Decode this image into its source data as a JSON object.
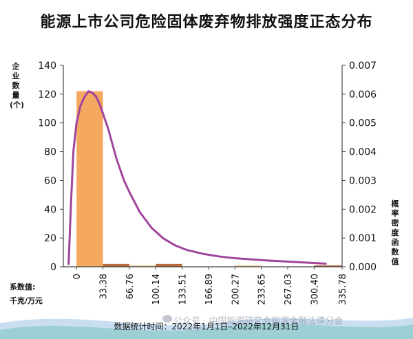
{
  "chart_data": {
    "type": "bar",
    "title": "能源上市公司危险固体废弃物排放强度正态分布",
    "y_left_label": "企业数量(个)",
    "y_right_label": "概率密度函数值",
    "x_label_line1": "系数值:",
    "x_label_line2": "千克/万元",
    "x_ticks": [
      "0",
      "33.38",
      "66.76",
      "100.14",
      "133.51",
      "166.89",
      "200.27",
      "233.65",
      "267.03",
      "300.40",
      "335.78"
    ],
    "y_left_ticks": [
      "0",
      "20",
      "40",
      "60",
      "80",
      "100",
      "120",
      "140"
    ],
    "y_right_ticks": [
      "0.000",
      "0.001",
      "0.002",
      "0.003",
      "0.004",
      "0.005",
      "0.006",
      "0.007"
    ],
    "ylim_left": [
      0,
      140
    ],
    "ylim_right": [
      0,
      0.007
    ],
    "xlim": [
      -16.69,
      335.78
    ],
    "bars": [
      {
        "x0": 0,
        "x1": 33.38,
        "value": 122,
        "color": "#F5A860"
      },
      {
        "x0": 33.38,
        "x1": 66.76,
        "value": 2,
        "color": "#B86A3A"
      },
      {
        "x0": 66.76,
        "x1": 100.14,
        "value": 1,
        "color": "#F2C49A"
      },
      {
        "x0": 100.14,
        "x1": 133.51,
        "value": 2,
        "color": "#B86A3A"
      },
      {
        "x0": 200.27,
        "x1": 233.65,
        "value": 1,
        "color": "#F2C49A"
      },
      {
        "x0": 300.4,
        "x1": 335.78,
        "value": 1,
        "color": "#B86A3A"
      }
    ],
    "curve": {
      "color": "#A0449C",
      "points": [
        [
          -10,
          0.0001
        ],
        [
          -7,
          0.0022
        ],
        [
          -4,
          0.004
        ],
        [
          0,
          0.005
        ],
        [
          5,
          0.0056
        ],
        [
          10,
          0.0059
        ],
        [
          15,
          0.0061
        ],
        [
          20,
          0.00605
        ],
        [
          25,
          0.0059
        ],
        [
          30,
          0.0056
        ],
        [
          35,
          0.0052
        ],
        [
          40,
          0.0048
        ],
        [
          45,
          0.0043
        ],
        [
          50,
          0.0038
        ],
        [
          55,
          0.0034
        ],
        [
          60,
          0.003
        ],
        [
          66.76,
          0.0026
        ],
        [
          80,
          0.0019
        ],
        [
          95,
          0.00135
        ],
        [
          110,
          0.00098
        ],
        [
          125,
          0.00074
        ],
        [
          140,
          0.00058
        ],
        [
          160,
          0.00045
        ],
        [
          180,
          0.00036
        ],
        [
          200,
          0.0003
        ],
        [
          220,
          0.00026
        ],
        [
          240,
          0.00022
        ],
        [
          260,
          0.00019
        ],
        [
          280,
          0.00016
        ],
        [
          300,
          0.00013
        ],
        [
          315,
          0.00011
        ]
      ]
    },
    "grid": false,
    "legend": "none"
  },
  "footnote": "数据统计时间：2022年1月1日–2022年12月31日",
  "watermark": "公众号 · 中国能源研究会能源金融法律分会",
  "colors": {
    "bar_main": "#F5A860",
    "bar_dark": "#B86A3A",
    "bar_light": "#F2C49A",
    "curve": "#A0449C",
    "wave_teal": "#7FC6C2",
    "wave_blue": "#9CC3E4"
  }
}
